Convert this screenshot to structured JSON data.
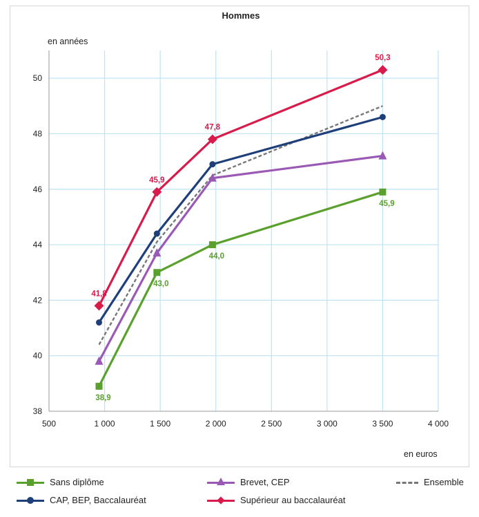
{
  "chart_data": {
    "type": "line",
    "title": "Hommes",
    "ylabel": "en années",
    "xlabel": "en euros",
    "xlim": [
      500,
      4000
    ],
    "ylim": [
      38,
      51
    ],
    "x_ticks": [
      500,
      1000,
      1500,
      2000,
      2500,
      3000,
      3500,
      4000
    ],
    "x_tick_labels": [
      "500",
      "1 000",
      "1 500",
      "2 000",
      "2 500",
      "3 000",
      "3 500",
      "4 000"
    ],
    "y_ticks": [
      38,
      40,
      42,
      44,
      46,
      48,
      50
    ],
    "y_tick_labels": [
      "38",
      "40",
      "42",
      "44",
      "46",
      "48",
      "50"
    ],
    "grid": true,
    "legend_position": "bottom",
    "series": [
      {
        "name": "Sans diplôme",
        "color": "#5aa02c",
        "marker": "square",
        "x": [
          950,
          1470,
          1970,
          3500
        ],
        "values": [
          38.9,
          43.0,
          44.0,
          45.9
        ],
        "labels": [
          "38,9",
          "43,0",
          "44,0",
          "45,9"
        ],
        "label_side": "below"
      },
      {
        "name": "CAP, BEP, Baccalauréat",
        "color": "#1f3f7a",
        "marker": "circle",
        "x": [
          950,
          1470,
          1970,
          3500
        ],
        "values": [
          41.2,
          44.4,
          46.9,
          48.6
        ]
      },
      {
        "name": "Brevet, CEP",
        "color": "#9b59b6",
        "marker": "triangle",
        "x": [
          950,
          1470,
          1970,
          3500
        ],
        "values": [
          39.8,
          43.7,
          46.4,
          47.2
        ]
      },
      {
        "name": "Supérieur au baccalauréat",
        "color": "#d81b4a",
        "marker": "diamond",
        "x": [
          950,
          1470,
          1970,
          3500
        ],
        "values": [
          41.8,
          45.9,
          47.8,
          50.3
        ],
        "labels": [
          "41,8",
          "45,9",
          "47,8",
          "50,3"
        ],
        "label_side": "above"
      },
      {
        "name": "Ensemble",
        "color": "#777777",
        "marker": "none",
        "dashed": true,
        "x": [
          950,
          1470,
          1970,
          3500
        ],
        "values": [
          40.4,
          44.1,
          46.5,
          49.0
        ]
      }
    ]
  }
}
